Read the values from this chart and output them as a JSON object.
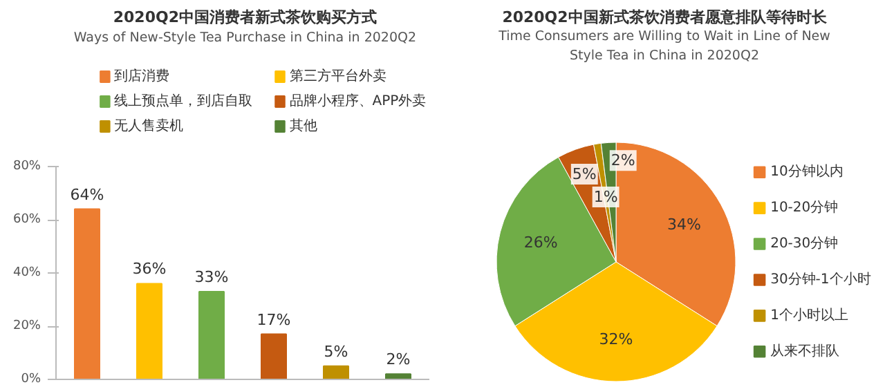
{
  "chart_data": [
    {
      "type": "bar",
      "title": "2020Q2中国消费者新式茶饮购买方式",
      "subtitle": "Ways of New-Style Tea Purchase in China in 2020Q2",
      "categories": [
        null,
        null,
        null,
        null,
        null,
        null
      ],
      "series": [
        {
          "name": "到店消费",
          "color": "#ed7d31",
          "values": [
            64,
            null,
            null,
            null,
            null,
            null
          ],
          "value_labels": [
            "64%",
            null,
            null,
            null,
            null,
            null
          ]
        },
        {
          "name": "第三方平台外卖",
          "color": "#ffc000",
          "values": [
            null,
            36,
            null,
            null,
            null,
            null
          ],
          "value_labels": [
            null,
            "36%",
            null,
            null,
            null,
            null
          ]
        },
        {
          "name": "线上预点单，到店自取",
          "color": "#70ad47",
          "values": [
            null,
            null,
            33,
            null,
            null,
            null
          ],
          "value_labels": [
            null,
            null,
            "33%",
            null,
            null,
            null
          ]
        },
        {
          "name": "品牌小程序、APP外卖",
          "color": "#c55a11",
          "values": [
            null,
            null,
            null,
            17,
            null,
            null
          ],
          "value_labels": [
            null,
            null,
            null,
            "17%",
            null,
            null
          ]
        },
        {
          "name": "无人售卖机",
          "color": "#bf9000",
          "values": [
            null,
            null,
            null,
            null,
            5,
            null
          ],
          "value_labels": [
            null,
            null,
            null,
            null,
            "5%",
            null
          ]
        },
        {
          "name": "其他",
          "color": "#548235",
          "values": [
            null,
            null,
            null,
            null,
            null,
            2
          ],
          "value_labels": [
            null,
            null,
            null,
            null,
            null,
            "2%"
          ]
        }
      ],
      "ylim": [
        0,
        80
      ],
      "yticks": [
        {
          "value": 0,
          "label": "0%"
        },
        {
          "value": 20,
          "label": "20%"
        },
        {
          "value": 40,
          "label": "40%"
        },
        {
          "value": 60,
          "label": "60%"
        },
        {
          "value": 80,
          "label": "80%"
        }
      ],
      "tick_labels": "y",
      "legend": "top"
    },
    {
      "type": "pie",
      "title": "2020Q2中国新式茶饮消费者愿意排队等待时长",
      "subtitle": "Time Consumers are Willing to Wait in Line of New Style Tea in China in 2020Q2",
      "categories": [
        "10分钟以内",
        "10-20分钟",
        "20-30分钟",
        "30分钟-1个小时",
        "1个小时以上",
        "从来不排队"
      ],
      "values": [
        34,
        32,
        26,
        5,
        1,
        2
      ],
      "colors": [
        "#ed7d31",
        "#ffc000",
        "#70ad47",
        "#c55a11",
        "#bf9000",
        "#548235"
      ],
      "value_labels": [
        "34%",
        "32%",
        "26%",
        "5%",
        "1%",
        "2%"
      ],
      "legend": "right"
    }
  ]
}
